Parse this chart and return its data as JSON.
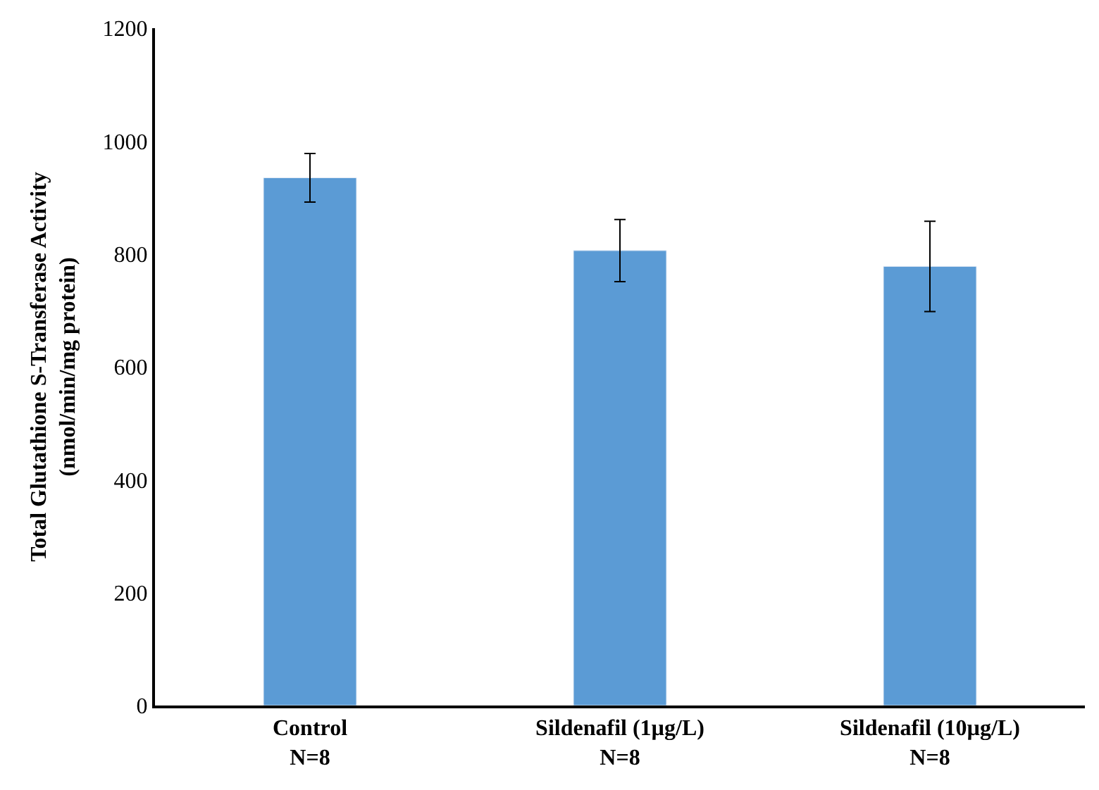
{
  "chart_data": {
    "type": "bar",
    "ylabel": "Total Glutathione S-Transferase Activity\n(nmol/min/mg protein)",
    "categories": [
      "Control\nN=8",
      "Sildenafil (1µg/L)\nN=8",
      "Sildenafil (10µg/L)\nN=8"
    ],
    "values": [
      935,
      806,
      778
    ],
    "errors": [
      43,
      55,
      80
    ],
    "color": "#5b9bd5",
    "ylim": [
      0,
      1200
    ],
    "yticks": [
      0,
      200,
      400,
      600,
      800,
      1000,
      1200
    ]
  }
}
